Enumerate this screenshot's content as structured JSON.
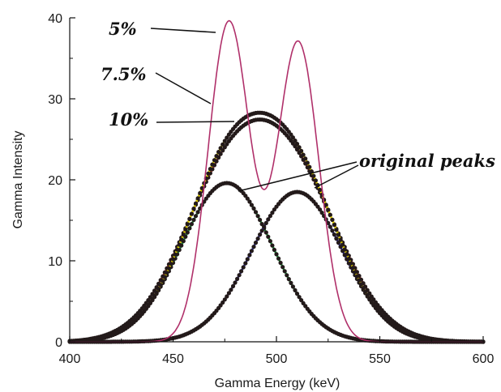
{
  "chart_data": {
    "type": "line",
    "xlabel": "Gamma Energy (keV)",
    "ylabel": "Gamma Intensity",
    "xlim": [
      400,
      600
    ],
    "ylim": [
      0,
      40
    ],
    "xticks": [
      400,
      450,
      500,
      550,
      600
    ],
    "yticks": [
      0,
      10,
      20,
      30,
      40
    ],
    "grid": false,
    "legend": "none",
    "series": [
      {
        "key": "peak_a",
        "style": "dots",
        "color": "#231a1a",
        "underlay": "#1a9a3a",
        "components": [
          {
            "center": 476,
            "amplitude": 19.6,
            "sigma": 22
          }
        ]
      },
      {
        "key": "peak_b",
        "style": "dots",
        "color": "#231a1a",
        "underlay": "#2a2ab0",
        "components": [
          {
            "center": 510,
            "amplitude": 18.5,
            "sigma": 22
          }
        ]
      },
      {
        "key": "res_10",
        "style": "dots",
        "color": "#231a1a",
        "underlay": "#d84030",
        "components": [
          {
            "center": 476,
            "amplitude": 19.6,
            "sigma": 22
          },
          {
            "center": 510,
            "amplitude": 18.5,
            "sigma": 22
          }
        ],
        "smear": 8.5
      },
      {
        "key": "res_7_5",
        "style": "dots",
        "color": "#231a1a",
        "underlay": "#e6d800",
        "components": [
          {
            "center": 476,
            "amplitude": 19.6,
            "sigma": 22
          },
          {
            "center": 510,
            "amplitude": 18.5,
            "sigma": 22
          }
        ],
        "smear": 0
      },
      {
        "key": "res_5",
        "style": "line",
        "color": "#b0306a",
        "components": [
          {
            "center": 477,
            "amplitude": 39.5,
            "sigma": 10
          },
          {
            "center": 510.5,
            "amplitude": 37,
            "sigma": 10
          }
        ]
      }
    ],
    "annotations": [
      {
        "text": "5%",
        "points_to": [
          476,
          39.4
        ]
      },
      {
        "text": "7.5%",
        "points_to": [
          480,
          30.2
        ]
      },
      {
        "text": "10%",
        "points_to": [
          488,
          27.6
        ]
      },
      {
        "text": "original peaks",
        "points_to": [
          [
            476,
            19.6
          ],
          [
            510,
            18.5
          ]
        ]
      }
    ]
  }
}
